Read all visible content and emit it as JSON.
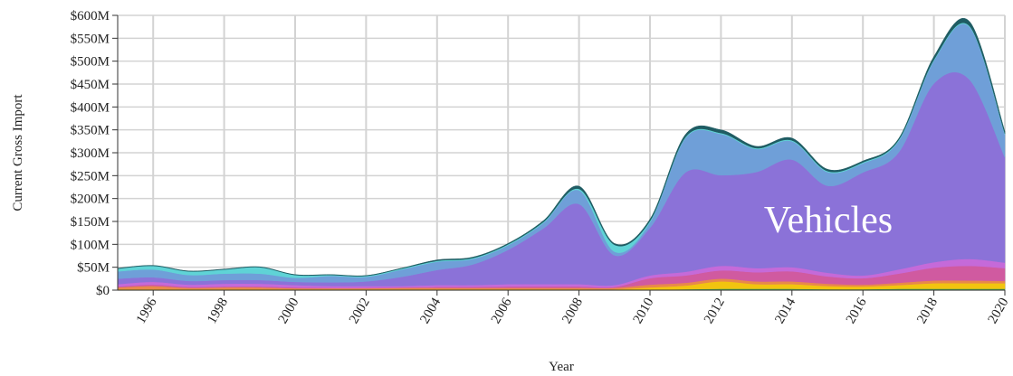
{
  "chart_data": {
    "type": "area",
    "stacked": true,
    "xlabel": "Year",
    "ylabel": "Current Gross Import",
    "xlim": [
      1995,
      2020
    ],
    "ylim": [
      0,
      600000000
    ],
    "x_ticks": [
      1996,
      1998,
      2000,
      2002,
      2004,
      2006,
      2008,
      2010,
      2012,
      2014,
      2016,
      2018,
      2020
    ],
    "y_ticks": [
      0,
      50000000,
      100000000,
      150000000,
      200000000,
      250000000,
      300000000,
      350000000,
      400000000,
      450000000,
      500000000,
      550000000,
      600000000
    ],
    "y_tick_labels": [
      "$0",
      "$50M",
      "$100M",
      "$150M",
      "$200M",
      "$250M",
      "$300M",
      "$350M",
      "$400M",
      "$450M",
      "$500M",
      "$550M",
      "$600M"
    ],
    "grid": true,
    "annotation": "Vehicles",
    "x": [
      1995,
      1996,
      1997,
      1998,
      1999,
      2000,
      2001,
      2002,
      2003,
      2004,
      2005,
      2006,
      2007,
      2008,
      2009,
      2010,
      2011,
      2012,
      2013,
      2014,
      2015,
      2016,
      2017,
      2018,
      2019,
      2020
    ],
    "series": [
      {
        "color": "#4caf50",
        "values": [
          1000000,
          1000000,
          1000000,
          1000000,
          1000000,
          1000000,
          1000000,
          1000000,
          1000000,
          1000000,
          1000000,
          1000000,
          1000000,
          1000000,
          1000000,
          1000000,
          2000000,
          3000000,
          3000000,
          3000000,
          2000000,
          2000000,
          3000000,
          3000000,
          3000000,
          3000000
        ]
      },
      {
        "color": "#f2c40f",
        "values": [
          1000000,
          1000000,
          1000000,
          1000000,
          1000000,
          1000000,
          1000000,
          1000000,
          1000000,
          1000000,
          1000000,
          1000000,
          1000000,
          1000000,
          1000000,
          5000000,
          8000000,
          16000000,
          10000000,
          10000000,
          7000000,
          6000000,
          8000000,
          12000000,
          12000000,
          12000000
        ]
      },
      {
        "color": "#e8894a",
        "values": [
          4000000,
          7000000,
          3000000,
          4000000,
          4000000,
          2000000,
          2000000,
          2000000,
          3000000,
          3000000,
          3000000,
          3000000,
          3000000,
          3000000,
          3000000,
          6000000,
          6000000,
          6000000,
          6000000,
          6000000,
          5000000,
          4000000,
          5000000,
          6000000,
          6000000,
          5000000
        ]
      },
      {
        "color": "#d05aa0",
        "values": [
          2000000,
          3000000,
          2000000,
          2000000,
          2000000,
          2000000,
          1000000,
          1000000,
          1000000,
          2000000,
          2000000,
          3000000,
          3000000,
          3000000,
          2000000,
          14000000,
          16000000,
          18000000,
          20000000,
          22000000,
          16000000,
          14000000,
          20000000,
          28000000,
          32000000,
          28000000
        ]
      },
      {
        "color": "#c56ad9",
        "values": [
          5000000,
          6000000,
          5000000,
          6000000,
          6000000,
          5000000,
          4000000,
          4000000,
          3000000,
          4000000,
          4000000,
          5000000,
          5000000,
          5000000,
          4000000,
          6000000,
          8000000,
          10000000,
          9000000,
          9000000,
          8000000,
          6000000,
          9000000,
          12000000,
          15000000,
          12000000
        ]
      },
      {
        "color": "#8b72d8",
        "values": [
          12000000,
          10000000,
          8000000,
          8000000,
          8000000,
          7000000,
          8000000,
          10000000,
          20000000,
          33000000,
          45000000,
          75000000,
          122000000,
          175000000,
          65000000,
          104000000,
          217000000,
          198000000,
          210000000,
          235000000,
          190000000,
          225000000,
          255000000,
          390000000,
          392000000,
          230000000
        ]
      },
      {
        "color": "#6f9fd8",
        "values": [
          16000000,
          17000000,
          13000000,
          14000000,
          14000000,
          9000000,
          14000000,
          10000000,
          16000000,
          18000000,
          12000000,
          10000000,
          12000000,
          30000000,
          8000000,
          12000000,
          75000000,
          90000000,
          50000000,
          40000000,
          30000000,
          20000000,
          25000000,
          50000000,
          115000000,
          50000000
        ]
      },
      {
        "color": "#5fd3d6",
        "values": [
          6000000,
          8000000,
          8000000,
          9000000,
          14000000,
          6000000,
          2000000,
          2000000,
          2000000,
          2000000,
          2000000,
          2000000,
          2000000,
          3000000,
          15000000,
          3000000,
          2000000,
          2000000,
          2000000,
          2000000,
          2000000,
          2000000,
          2000000,
          2000000,
          2000000,
          2000000
        ]
      },
      {
        "color": "#1f5c63",
        "values": [
          1000000,
          1000000,
          1000000,
          1000000,
          1000000,
          1000000,
          1000000,
          1000000,
          1000000,
          2000000,
          2000000,
          2000000,
          3000000,
          6000000,
          3000000,
          4000000,
          6000000,
          7000000,
          4000000,
          5000000,
          4000000,
          3000000,
          3000000,
          7000000,
          10000000,
          5000000
        ]
      }
    ]
  }
}
